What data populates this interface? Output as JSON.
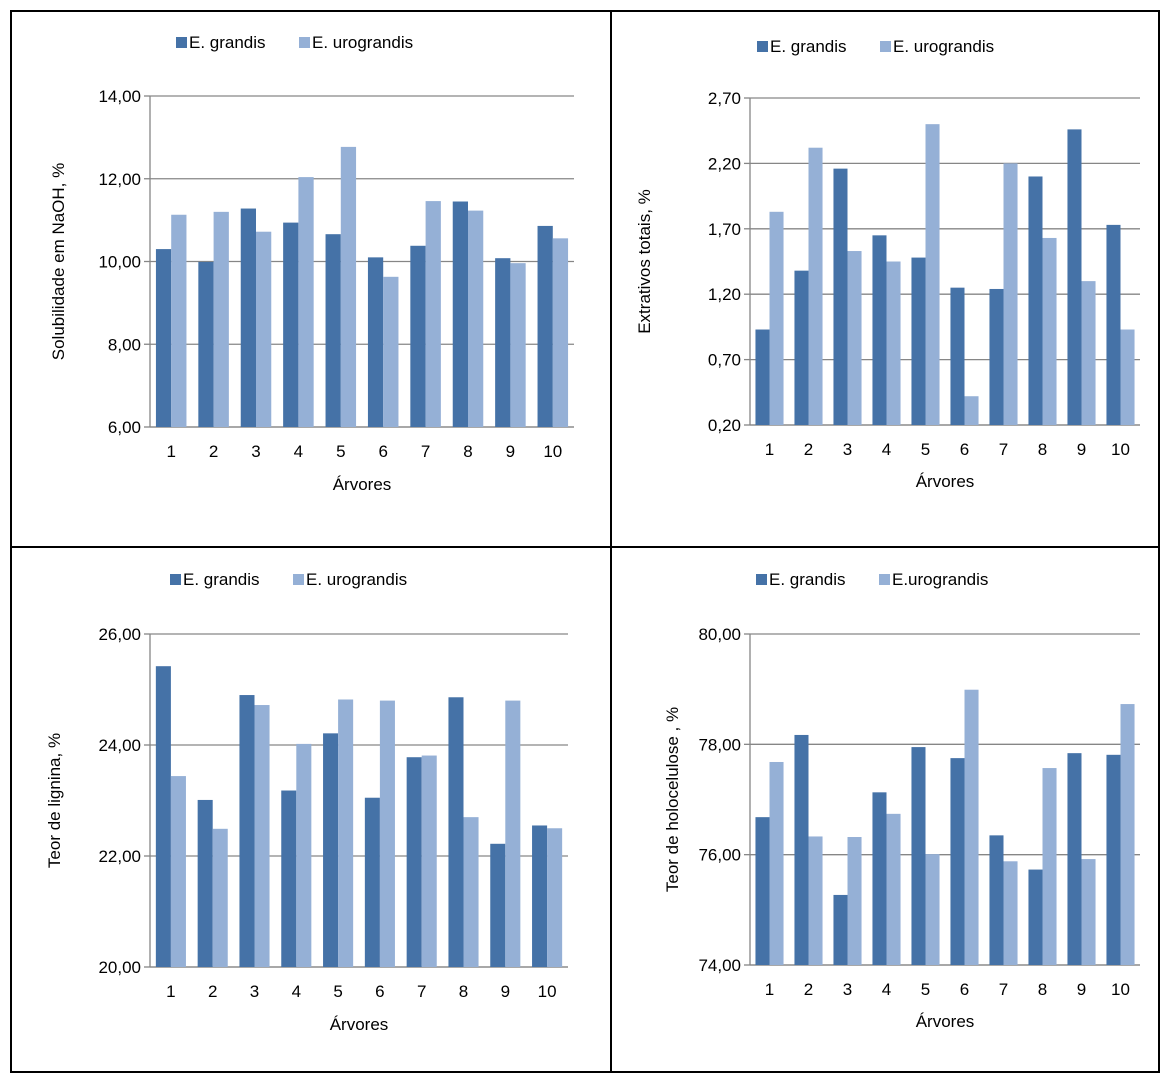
{
  "colors": {
    "grandis": "#4572A7",
    "urograndis": "#95B0D6",
    "grid": "#868686"
  },
  "chart_data": [
    {
      "type": "bar",
      "legend": [
        "E. grandis",
        "E. urograndis"
      ],
      "categories": [
        "1",
        "2",
        "3",
        "4",
        "5",
        "6",
        "7",
        "8",
        "9",
        "10"
      ],
      "series": [
        {
          "name": "E. grandis",
          "values": [
            10.3,
            9.99,
            11.28,
            10.94,
            10.66,
            10.1,
            10.38,
            11.45,
            10.08,
            10.86
          ]
        },
        {
          "name": "E. urograndis",
          "values": [
            11.13,
            11.2,
            10.72,
            12.04,
            12.77,
            9.63,
            11.46,
            11.23,
            9.96,
            10.56
          ]
        }
      ],
      "xlabel": "Árvores",
      "ylabel": "Solubilidade em NaOH, %",
      "ylim": [
        6.0,
        14.0
      ],
      "yticks": [
        "6,00",
        "8,00",
        "10,00",
        "12,00",
        "14,00"
      ],
      "grid": true,
      "legend_position": "top"
    },
    {
      "type": "bar",
      "legend": [
        "E. grandis",
        "E. urograndis"
      ],
      "categories": [
        "1",
        "2",
        "3",
        "4",
        "5",
        "6",
        "7",
        "8",
        "9",
        "10"
      ],
      "series": [
        {
          "name": "E. grandis",
          "values": [
            0.93,
            1.38,
            2.16,
            1.65,
            1.48,
            1.25,
            1.24,
            2.1,
            2.46,
            1.73
          ]
        },
        {
          "name": "E. urograndis",
          "values": [
            1.83,
            2.32,
            1.53,
            1.45,
            2.5,
            0.42,
            2.2,
            1.63,
            1.3,
            0.93
          ]
        }
      ],
      "xlabel": "Árvores",
      "ylabel": "Extrativos totais, %",
      "ylim": [
        0.2,
        2.7
      ],
      "yticks": [
        "0,20",
        "0,70",
        "1,20",
        "1,70",
        "2,20",
        "2,70"
      ],
      "grid": true,
      "legend_position": "top"
    },
    {
      "type": "bar",
      "legend": [
        "E. grandis",
        "E. urograndis"
      ],
      "categories": [
        "1",
        "2",
        "3",
        "4",
        "5",
        "6",
        "7",
        "8",
        "9",
        "10"
      ],
      "series": [
        {
          "name": "E. grandis",
          "values": [
            25.42,
            23.01,
            24.9,
            23.18,
            24.21,
            23.05,
            23.78,
            24.86,
            22.22,
            22.55
          ]
        },
        {
          "name": "E. urograndis",
          "values": [
            23.44,
            22.49,
            24.72,
            24.02,
            24.82,
            24.8,
            23.81,
            22.7,
            24.8,
            22.5
          ]
        }
      ],
      "xlabel": "Árvores",
      "ylabel": "Teor de lignina, %",
      "ylim": [
        20.0,
        26.0
      ],
      "yticks": [
        "20,00",
        "22,00",
        "24,00",
        "26,00"
      ],
      "grid": true,
      "legend_position": "top"
    },
    {
      "type": "bar",
      "legend": [
        "E. grandis",
        "E.urograndis"
      ],
      "categories": [
        "1",
        "2",
        "3",
        "4",
        "5",
        "6",
        "7",
        "8",
        "9",
        "10"
      ],
      "series": [
        {
          "name": "E. grandis",
          "values": [
            76.68,
            78.17,
            75.27,
            77.13,
            77.95,
            77.75,
            76.35,
            75.73,
            77.84,
            77.81
          ]
        },
        {
          "name": "E.urograndis",
          "values": [
            77.68,
            76.33,
            76.32,
            76.74,
            76.01,
            78.99,
            75.88,
            77.57,
            75.92,
            78.73
          ]
        }
      ],
      "xlabel": "Árvores",
      "ylabel": "Teor de holocelulose , %",
      "ylim": [
        74.0,
        80.0
      ],
      "yticks": [
        "74,00",
        "76,00",
        "78,00",
        "80,00"
      ],
      "grid": true,
      "legend_position": "top"
    }
  ]
}
